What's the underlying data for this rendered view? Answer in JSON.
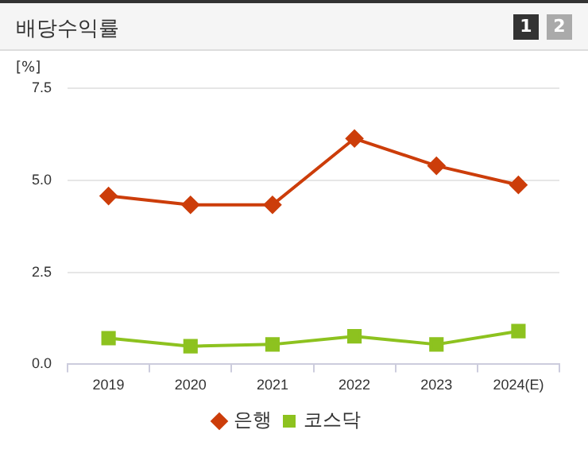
{
  "chart_data": {
    "type": "line",
    "title": "배당수익률",
    "ylabel": "[%]",
    "annotations": [
      "1",
      "2"
    ],
    "categories": [
      "2019",
      "2020",
      "2021",
      "2022",
      "2023",
      "2024(E)"
    ],
    "series": [
      {
        "name": "은행",
        "color": "#cc3d0a",
        "marker": "diamond",
        "values": [
          4.57,
          4.33,
          4.33,
          6.13,
          5.39,
          4.87
        ]
      },
      {
        "name": "코스닥",
        "color": "#8dc21f",
        "marker": "square",
        "values": [
          0.71,
          0.49,
          0.54,
          0.76,
          0.54,
          0.9
        ]
      }
    ],
    "ylim": [
      0,
      7.5
    ],
    "yticks": [
      {
        "value": 0,
        "label": "0.0"
      },
      {
        "value": 2.5,
        "label": "2.5"
      },
      {
        "value": 5,
        "label": "5.0"
      },
      {
        "value": 7.5,
        "label": "7.5"
      }
    ],
    "grid": "y",
    "legend": "bottom"
  }
}
